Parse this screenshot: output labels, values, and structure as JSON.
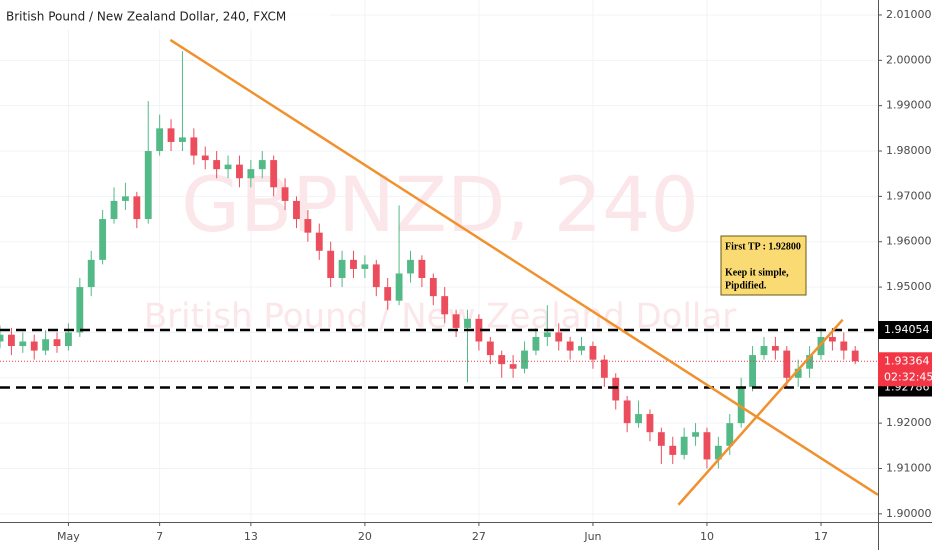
{
  "chart_data": {
    "type": "candlestick",
    "title": "British Pound / New Zealand Dollar, 240, FXCM",
    "watermark": "GBPNZD, 240",
    "watermark_subtitle": "British Pound / New Zealand Dollar",
    "up_color": "#53b987",
    "down_color": "#eb4d5c",
    "x": [
      -3,
      -2.5,
      -2,
      -1.5,
      -1,
      -0.5,
      0,
      0.5,
      1,
      1.5,
      2,
      2.5,
      3,
      3.5,
      4,
      4.5,
      5,
      5.5,
      6,
      6.5,
      7,
      7.5,
      8,
      8.5,
      9,
      9.5,
      10,
      10.5,
      11,
      11.5,
      12,
      12.5,
      13,
      13.5,
      14,
      14.5,
      15,
      15.5,
      16,
      16.5,
      17,
      17.5,
      18,
      18.5,
      19,
      19.5,
      20,
      20.5,
      21,
      21.5,
      22,
      22.5,
      23,
      23.5,
      24,
      24.5,
      25,
      25.5,
      26,
      26.5,
      27,
      27.5,
      28,
      28.5,
      29,
      29.5,
      30,
      30.5,
      31,
      31.5,
      32,
      32.5,
      33,
      33.5,
      34,
      34.5
    ],
    "open": [
      1.938,
      1.9395,
      1.937,
      1.938,
      1.936,
      1.9385,
      1.937,
      1.94,
      1.95,
      1.956,
      1.965,
      1.969,
      1.97,
      1.965,
      1.98,
      1.985,
      1.982,
      1.983,
      1.979,
      1.978,
      1.976,
      1.977,
      1.974,
      1.976,
      1.978,
      1.972,
      1.969,
      1.965,
      1.962,
      1.958,
      1.952,
      1.956,
      1.954,
      1.955,
      1.95,
      1.947,
      1.953,
      1.956,
      1.952,
      1.948,
      1.944,
      1.941,
      1.943,
      1.938,
      1.935,
      1.933,
      1.932,
      1.936,
      1.939,
      1.94,
      1.938,
      1.936,
      1.937,
      1.934,
      1.93,
      1.925,
      1.92,
      1.922,
      1.918,
      1.915,
      1.913,
      1.917,
      1.918,
      1.912,
      1.915,
      1.92,
      1.928,
      1.935,
      1.937,
      1.936,
      1.93,
      1.932,
      1.935,
      1.939,
      1.938,
      1.936
    ],
    "high": [
      1.9415,
      1.941,
      1.94,
      1.9395,
      1.9405,
      1.94,
      1.942,
      1.952,
      1.958,
      1.967,
      1.972,
      1.973,
      1.971,
      1.991,
      1.988,
      1.987,
      2.002,
      1.985,
      1.981,
      1.98,
      1.979,
      1.979,
      1.978,
      1.98,
      1.979,
      1.974,
      1.97,
      1.967,
      1.964,
      1.96,
      1.958,
      1.958,
      1.957,
      1.956,
      1.952,
      1.968,
      1.958,
      1.957,
      1.953,
      1.95,
      1.945,
      1.945,
      1.944,
      1.939,
      1.936,
      1.935,
      1.938,
      1.941,
      1.946,
      1.942,
      1.939,
      1.939,
      1.938,
      1.935,
      1.931,
      1.926,
      1.925,
      1.923,
      1.919,
      1.917,
      1.919,
      1.92,
      1.919,
      1.917,
      1.922,
      1.93,
      1.937,
      1.939,
      1.939,
      1.937,
      1.934,
      1.937,
      1.941,
      1.941,
      1.94,
      1.937
    ],
    "low": [
      1.9365,
      1.935,
      1.9355,
      1.934,
      1.935,
      1.9355,
      1.936,
      1.939,
      1.948,
      1.955,
      1.964,
      1.967,
      1.963,
      1.964,
      1.979,
      1.98,
      1.98,
      1.977,
      1.976,
      1.974,
      1.974,
      1.972,
      1.972,
      1.974,
      1.97,
      1.967,
      1.963,
      1.96,
      1.956,
      1.95,
      1.95,
      1.952,
      1.952,
      1.948,
      1.945,
      1.946,
      1.951,
      1.95,
      1.946,
      1.942,
      1.939,
      1.929,
      1.936,
      1.933,
      1.93,
      1.93,
      1.931,
      1.935,
      1.937,
      1.936,
      1.934,
      1.935,
      1.932,
      1.928,
      1.923,
      1.918,
      1.919,
      1.916,
      1.911,
      1.911,
      1.912,
      1.915,
      1.91,
      1.91,
      1.913,
      1.919,
      1.927,
      1.934,
      1.934,
      1.928,
      1.928,
      1.93,
      1.934,
      1.936,
      1.934,
      1.933
    ],
    "close": [
      1.9395,
      1.937,
      1.938,
      1.936,
      1.9385,
      1.937,
      1.94,
      1.95,
      1.956,
      1.965,
      1.969,
      1.97,
      1.965,
      1.98,
      1.985,
      1.982,
      1.983,
      1.979,
      1.978,
      1.976,
      1.977,
      1.974,
      1.976,
      1.978,
      1.972,
      1.969,
      1.965,
      1.962,
      1.958,
      1.952,
      1.956,
      1.954,
      1.955,
      1.95,
      1.947,
      1.953,
      1.956,
      1.952,
      1.948,
      1.944,
      1.941,
      1.943,
      1.938,
      1.935,
      1.933,
      1.932,
      1.936,
      1.939,
      1.94,
      1.938,
      1.936,
      1.937,
      1.934,
      1.93,
      1.925,
      1.92,
      1.922,
      1.918,
      1.915,
      1.913,
      1.917,
      1.918,
      1.912,
      1.915,
      1.92,
      1.928,
      1.935,
      1.937,
      1.936,
      1.93,
      1.932,
      1.935,
      1.939,
      1.938,
      1.936,
      1.93364
    ],
    "xlim": [
      -3,
      35.5
    ],
    "xticks": [
      {
        "value": 0,
        "label": "May"
      },
      {
        "value": 4,
        "label": "7"
      },
      {
        "value": 8,
        "label": "13"
      },
      {
        "value": 13,
        "label": "20"
      },
      {
        "value": 18,
        "label": "27"
      },
      {
        "value": 23,
        "label": "Jun"
      },
      {
        "value": 28,
        "label": "10"
      },
      {
        "value": 33,
        "label": "17"
      }
    ],
    "ylim": [
      1.8982,
      2.0133
    ],
    "yticks": [
      {
        "value": 1.9,
        "label": "1.90000"
      },
      {
        "value": 1.91,
        "label": "1.91000"
      },
      {
        "value": 1.92,
        "label": "1.92000"
      },
      {
        "value": 1.93,
        "label": "1.93000"
      },
      {
        "value": 1.94,
        "label": "1.94000"
      },
      {
        "value": 1.95,
        "label": "1.95000"
      },
      {
        "value": 1.96,
        "label": "1.96000"
      },
      {
        "value": 1.97,
        "label": "1.97000"
      },
      {
        "value": 1.98,
        "label": "1.98000"
      },
      {
        "value": 1.99,
        "label": "1.99000"
      },
      {
        "value": 2.0,
        "label": "2.00000"
      },
      {
        "value": 2.01,
        "label": "2.01000"
      }
    ],
    "grid": true,
    "levels": [
      {
        "value": 1.94054,
        "label": "1.94054"
      },
      {
        "value": 1.92786,
        "label": "1.92786"
      }
    ],
    "last_price": {
      "value": 1.93364,
      "label": "1.93364",
      "color": "#f23645"
    },
    "countdown": "02:32:45",
    "trend_lines": [
      {
        "color": "#f0912e",
        "x": [
          4.47,
          35.5
        ],
        "y": [
          2.0045,
          1.9042
        ]
      },
      {
        "color": "#f0912e",
        "x": [
          26.75,
          33.95
        ],
        "y": [
          1.902,
          1.9428
        ]
      }
    ],
    "note": [
      "First TP : 1.92800",
      "Keep it simple,",
      "Pipdified."
    ]
  }
}
